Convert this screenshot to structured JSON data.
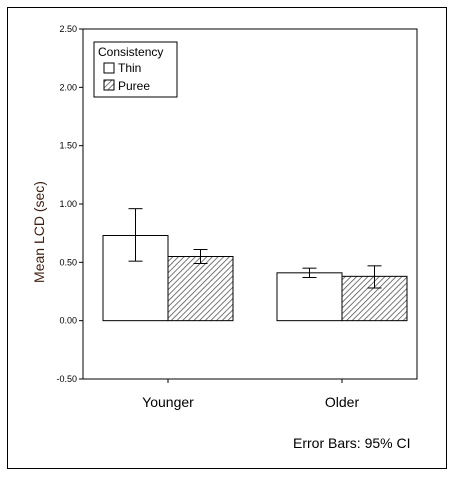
{
  "chart_data": {
    "type": "bar",
    "categories": [
      "Younger",
      "Older"
    ],
    "series": [
      {
        "name": "Thin",
        "values": [
          0.73,
          0.41
        ],
        "ci_low": [
          0.51,
          0.37
        ],
        "ci_high": [
          0.96,
          0.45
        ],
        "pattern": "none",
        "fill": "#ffffff"
      },
      {
        "name": "Puree",
        "values": [
          0.55,
          0.38
        ],
        "ci_low": [
          0.49,
          0.28
        ],
        "ci_high": [
          0.61,
          0.47
        ],
        "pattern": "diagonal-hatch",
        "fill": "#ffffff"
      }
    ],
    "ylabel": "Mean LCD (sec)",
    "xlabel": "",
    "ylim": [
      -0.5,
      2.5
    ],
    "yticks": [
      "-0.50",
      "0.00",
      "0.50",
      "1.00",
      "1.50",
      "2.00",
      "2.50"
    ],
    "ytick_values": [
      -0.5,
      0,
      0.5,
      1.0,
      1.5,
      2.0,
      2.5
    ],
    "legend": {
      "title": "Consistency",
      "position": "top-left",
      "entries": [
        "Thin",
        "Puree"
      ]
    },
    "footnote": "Error Bars: 95% CI",
    "grid": false,
    "colors": {
      "axis": "#000000",
      "bar_edge": "#000000",
      "hatch": "#555555",
      "ylabel": "#3a1e12"
    }
  }
}
